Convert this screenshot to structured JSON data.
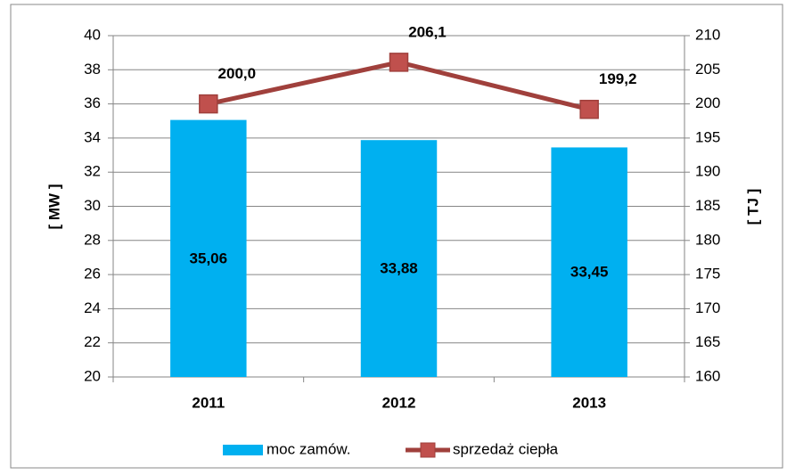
{
  "chart_data": {
    "type": "bar",
    "categories": [
      "2011",
      "2012",
      "2013"
    ],
    "series": [
      {
        "name": "moc zamów.",
        "type": "bar",
        "color": "#00b0f0",
        "values": [
          35.06,
          33.88,
          33.45
        ],
        "value_labels": [
          "35,06",
          "33,88",
          "33,45"
        ]
      },
      {
        "name": "sprzedaż ciepła",
        "type": "line",
        "axis": "y2",
        "color": "#a0403c",
        "marker_color": "#c0504d",
        "values": [
          200.0,
          206.1,
          199.2
        ],
        "value_labels": [
          "200,0",
          "206,1",
          "199,2"
        ]
      }
    ],
    "ylabel": "[ MW ]",
    "y2label": "[ TJ ]",
    "ylim": [
      20,
      40
    ],
    "yticks": [
      20,
      22,
      24,
      26,
      28,
      30,
      32,
      34,
      36,
      38,
      40
    ],
    "y2lim": [
      160,
      210
    ],
    "y2ticks": [
      160,
      165,
      170,
      175,
      180,
      185,
      190,
      195,
      200,
      205,
      210
    ],
    "grid": true,
    "legend": "bottom"
  }
}
